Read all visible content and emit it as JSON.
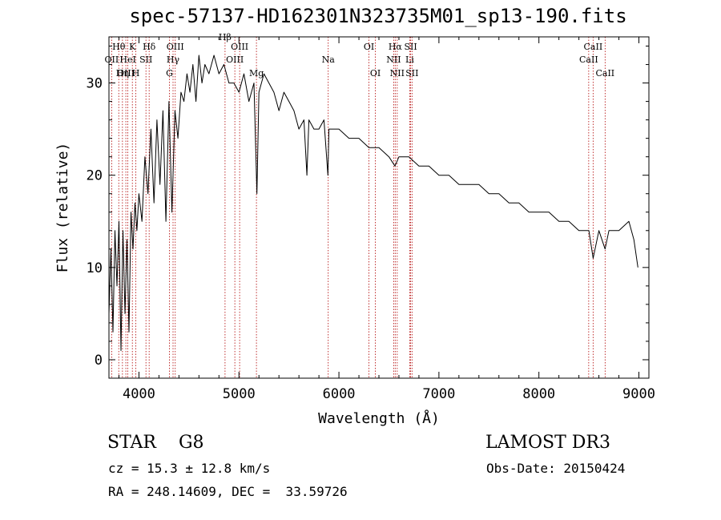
{
  "title": "spec-57137-HD162301N323735M01_sp13-190.fits",
  "chart_data": {
    "type": "line",
    "xlabel": "Wavelength (Å)",
    "ylabel": "Flux (relative)",
    "xlim": [
      3700,
      9100
    ],
    "ylim": [
      -2,
      35
    ],
    "x_ticks": [
      4000,
      5000,
      6000,
      7000,
      8000,
      9000
    ],
    "y_ticks": [
      0,
      10,
      20,
      30
    ],
    "series": [
      {
        "name": "flux",
        "x": [
          3700,
          3720,
          3740,
          3760,
          3780,
          3800,
          3820,
          3840,
          3860,
          3880,
          3900,
          3920,
          3940,
          3960,
          3980,
          4000,
          4030,
          4060,
          4090,
          4120,
          4150,
          4180,
          4210,
          4240,
          4270,
          4300,
          4330,
          4360,
          4390,
          4420,
          4450,
          4480,
          4510,
          4540,
          4570,
          4600,
          4630,
          4660,
          4700,
          4750,
          4800,
          4850,
          4900,
          4950,
          5000,
          5050,
          5100,
          5150,
          5180,
          5200,
          5250,
          5300,
          5350,
          5400,
          5450,
          5500,
          5550,
          5600,
          5650,
          5680,
          5700,
          5750,
          5800,
          5850,
          5890,
          5900,
          5950,
          6000,
          6100,
          6200,
          6300,
          6400,
          6500,
          6560,
          6600,
          6700,
          6800,
          6900,
          7000,
          7100,
          7200,
          7300,
          7400,
          7500,
          7600,
          7700,
          7800,
          7900,
          8000,
          8100,
          8200,
          8300,
          8400,
          8500,
          8542,
          8600,
          8662,
          8700,
          8800,
          8900,
          8950,
          8990
        ],
        "y": [
          5,
          12,
          3,
          14,
          8,
          15,
          1,
          14,
          5,
          13,
          3,
          16,
          12,
          17,
          14,
          18,
          15,
          22,
          18,
          25,
          17,
          26,
          19,
          27,
          15,
          28,
          16,
          27,
          24,
          29,
          28,
          31,
          29,
          32,
          28,
          33,
          30,
          32,
          31,
          33,
          31,
          32,
          30,
          30,
          29,
          31,
          28,
          30,
          18,
          29,
          31,
          30,
          29,
          27,
          29,
          28,
          27,
          25,
          26,
          20,
          26,
          25,
          25,
          26,
          20,
          25,
          25,
          25,
          24,
          24,
          23,
          23,
          22,
          21,
          22,
          22,
          21,
          21,
          20,
          20,
          19,
          19,
          19,
          18,
          18,
          17,
          17,
          16,
          16,
          16,
          15,
          15,
          14,
          14,
          11,
          14,
          12,
          14,
          14,
          15,
          13,
          10
        ]
      }
    ],
    "lines": [
      {
        "label": "Hθ",
        "x": 3798,
        "row": 1
      },
      {
        "label": "OII",
        "x": 3727,
        "row": 2
      },
      {
        "label": "Hη",
        "x": 3835,
        "row": 3
      },
      {
        "label": "OIII",
        "x": 3869,
        "row": 3
      },
      {
        "label": "K",
        "x": 3934,
        "row": 1
      },
      {
        "label": "HeI",
        "x": 3889,
        "row": 2
      },
      {
        "label": "H",
        "x": 3969,
        "row": 3
      },
      {
        "label": "SII",
        "x": 4070,
        "row": 2
      },
      {
        "label": "Hδ",
        "x": 4102,
        "row": 1
      },
      {
        "label": "OIII",
        "x": 4363,
        "row": 1
      },
      {
        "label": "Hγ",
        "x": 4341,
        "row": 2
      },
      {
        "label": "G",
        "x": 4305,
        "row": 3
      },
      {
        "label": "OIII",
        "x": 5007,
        "row": 1
      },
      {
        "label": "OIII",
        "x": 4959,
        "row": 2
      },
      {
        "label": "Hβ",
        "x": 4861,
        "row": 0
      },
      {
        "label": "Mg",
        "x": 5175,
        "row": 3
      },
      {
        "label": "Na",
        "x": 5893,
        "row": 2
      },
      {
        "label": "OI",
        "x": 6300,
        "row": 1
      },
      {
        "label": "OI",
        "x": 6364,
        "row": 3
      },
      {
        "label": "Hα",
        "x": 6563,
        "row": 1
      },
      {
        "label": "NII",
        "x": 6548,
        "row": 2
      },
      {
        "label": "NII",
        "x": 6583,
        "row": 3
      },
      {
        "label": "SII",
        "x": 6717,
        "row": 1
      },
      {
        "label": "Li",
        "x": 6708,
        "row": 2
      },
      {
        "label": "SII",
        "x": 6731,
        "row": 3
      },
      {
        "label": "CaII",
        "x": 8542,
        "row": 1
      },
      {
        "label": "CaII",
        "x": 8498,
        "row": 2
      },
      {
        "label": "CaII",
        "x": 8662,
        "row": 3
      }
    ]
  },
  "info": {
    "class_line": "STAR    G8",
    "survey": "LAMOST DR3",
    "cz_line": "cz = 15.3 ± 12.8 km/s",
    "obs_date": "Obs-Date: 20150424",
    "coords_line": "RA = 248.14609, DEC =  33.59726"
  }
}
